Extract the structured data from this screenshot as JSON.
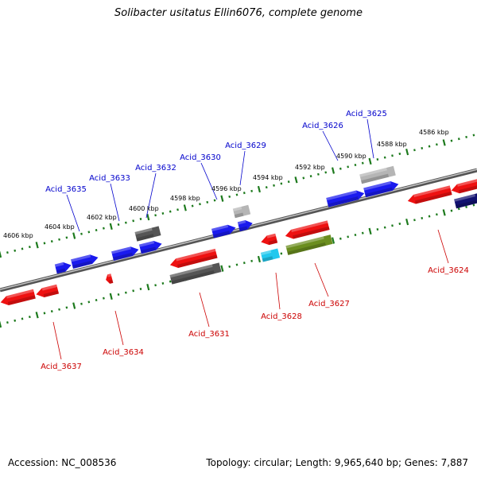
{
  "title": "Solibacter usitatus Ellin6076, complete genome",
  "footer": {
    "accession": "Accession: NC_008536",
    "stats": "Topology: circular; Length: 9,965,640 bp; Genes: 7,887"
  },
  "scale_labels": [
    "4606 kbp",
    "4604 kbp",
    "4602 kbp",
    "4600 kbp",
    "4598 kbp",
    "4596 kbp",
    "4594 kbp",
    "4592 kbp",
    "4590 kbp",
    "4588 kbp",
    "4586 kbp"
  ],
  "gene_labels": {
    "forward": [
      "Acid_3635",
      "Acid_3633",
      "Acid_3632",
      "Acid_3630",
      "Acid_3629",
      "Acid_3626",
      "Acid_3625"
    ],
    "reverse": [
      "Acid_3637",
      "Acid_3634",
      "Acid_3631",
      "Acid_3628",
      "Acid_3627",
      "Acid_3624"
    ]
  },
  "colors": {
    "forward_label": "#0000cc",
    "reverse_label": "#cc0000",
    "blue": "#1a1aee",
    "red": "#ee1111",
    "dark_gray": "#555555",
    "light_gray": "#b5b5b5",
    "cyan": "#22c8ee",
    "olive": "#6b8e1f",
    "navy": "#101070",
    "backbone": "#7a7a7a",
    "scale": "#1d7a1d"
  }
}
